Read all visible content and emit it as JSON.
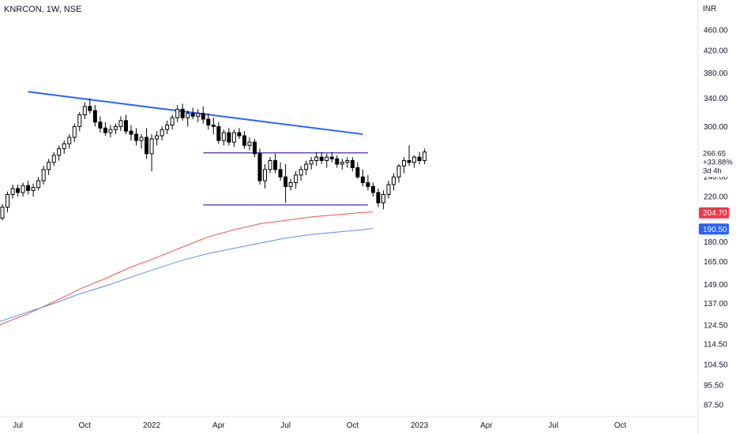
{
  "header": {
    "title": "KNRCON, 1W, NSE",
    "currency": "INR"
  },
  "chart_data": {
    "type": "candlestick",
    "title": "KNRCON, 1W, NSE",
    "y_scale": "log",
    "ylim": [
      83,
      490
    ],
    "y_ticks": [
      "460.00",
      "420.00",
      "380.00",
      "340.00",
      "300.00",
      "240.00",
      "220.00",
      "180.00",
      "165.00",
      "149.00",
      "137.00",
      "124.50",
      "114.50",
      "104.50",
      "95.50",
      "87.50"
    ],
    "x_ticks": [
      "Jul",
      "Oct",
      "2022",
      "Apr",
      "Jul",
      "Oct",
      "2023",
      "Apr",
      "Jul",
      "Oct"
    ],
    "x_tick_weeks": [
      3,
      16,
      29,
      42,
      55,
      68,
      81,
      94,
      107,
      120
    ],
    "candles": [
      [
        200,
        213,
        198,
        210
      ],
      [
        210,
        225,
        205,
        222
      ],
      [
        222,
        232,
        218,
        228
      ],
      [
        228,
        232,
        220,
        224
      ],
      [
        224,
        234,
        220,
        231
      ],
      [
        231,
        236,
        222,
        226
      ],
      [
        226,
        233,
        220,
        229
      ],
      [
        229,
        240,
        226,
        236
      ],
      [
        236,
        252,
        232,
        248
      ],
      [
        248,
        260,
        242,
        256
      ],
      [
        256,
        268,
        252,
        264
      ],
      [
        264,
        276,
        258,
        272
      ],
      [
        272,
        282,
        266,
        278
      ],
      [
        278,
        290,
        272,
        286
      ],
      [
        286,
        304,
        280,
        300
      ],
      [
        300,
        320,
        294,
        316
      ],
      [
        316,
        334,
        310,
        328
      ],
      [
        328,
        340,
        318,
        322
      ],
      [
        322,
        330,
        300,
        306
      ],
      [
        306,
        314,
        292,
        298
      ],
      [
        298,
        306,
        288,
        292
      ],
      [
        292,
        302,
        286,
        296
      ],
      [
        296,
        304,
        290,
        300
      ],
      [
        300,
        314,
        294,
        308
      ],
      [
        308,
        316,
        290,
        294
      ],
      [
        294,
        302,
        282,
        290
      ],
      [
        290,
        298,
        276,
        282
      ],
      [
        282,
        290,
        272,
        286
      ],
      [
        286,
        298,
        260,
        266
      ],
      [
        266,
        290,
        246,
        284
      ],
      [
        284,
        294,
        276,
        288
      ],
      [
        288,
        300,
        282,
        296
      ],
      [
        296,
        308,
        290,
        302
      ],
      [
        302,
        316,
        296,
        312
      ],
      [
        312,
        330,
        306,
        324
      ],
      [
        324,
        332,
        308,
        312
      ],
      [
        312,
        322,
        300,
        318
      ],
      [
        318,
        326,
        310,
        314
      ],
      [
        314,
        324,
        306,
        318
      ],
      [
        318,
        328,
        304,
        310
      ],
      [
        310,
        318,
        296,
        302
      ],
      [
        302,
        312,
        290,
        300
      ],
      [
        300,
        306,
        278,
        282
      ],
      [
        282,
        296,
        276,
        292
      ],
      [
        292,
        298,
        276,
        280
      ],
      [
        280,
        296,
        274,
        292
      ],
      [
        292,
        298,
        284,
        288
      ],
      [
        288,
        294,
        272,
        276
      ],
      [
        276,
        286,
        270,
        280
      ],
      [
        280,
        284,
        262,
        266
      ],
      [
        266,
        272,
        232,
        236
      ],
      [
        236,
        254,
        228,
        248
      ],
      [
        248,
        262,
        244,
        258
      ],
      [
        258,
        266,
        244,
        248
      ],
      [
        248,
        256,
        236,
        240
      ],
      [
        240,
        254,
        214,
        230
      ],
      [
        230,
        238,
        226,
        234
      ],
      [
        234,
        246,
        228,
        242
      ],
      [
        242,
        252,
        236,
        248
      ],
      [
        248,
        258,
        242,
        254
      ],
      [
        254,
        262,
        248,
        258
      ],
      [
        258,
        268,
        252,
        262
      ],
      [
        262,
        268,
        254,
        258
      ],
      [
        258,
        266,
        250,
        262
      ],
      [
        262,
        268,
        256,
        260
      ],
      [
        260,
        264,
        250,
        254
      ],
      [
        254,
        260,
        248,
        256
      ],
      [
        256,
        262,
        250,
        258
      ],
      [
        258,
        262,
        246,
        250
      ],
      [
        250,
        256,
        238,
        240
      ],
      [
        240,
        248,
        230,
        234
      ],
      [
        234,
        242,
        226,
        230
      ],
      [
        230,
        234,
        220,
        224
      ],
      [
        224,
        228,
        210,
        214
      ],
      [
        214,
        226,
        208,
        222
      ],
      [
        222,
        236,
        218,
        232
      ],
      [
        232,
        244,
        226,
        240
      ],
      [
        240,
        254,
        234,
        252
      ],
      [
        252,
        262,
        244,
        258
      ],
      [
        258,
        276,
        252,
        256
      ],
      [
        256,
        264,
        250,
        262
      ],
      [
        262,
        268,
        254,
        258
      ],
      [
        258,
        272,
        254,
        268
      ]
    ],
    "lines": [
      {
        "name": "descending-trendline",
        "color": "#2962ff",
        "points": [
          [
            5,
            350
          ],
          [
            70,
            290
          ]
        ]
      },
      {
        "name": "resistance-line",
        "color": "#5b3bbf",
        "points": [
          [
            39,
            267
          ],
          [
            71,
            267
          ]
        ]
      },
      {
        "name": "support-line",
        "color": "#5b3bbf",
        "points": [
          [
            39,
            212
          ],
          [
            71,
            212
          ]
        ]
      }
    ],
    "moving_averages": [
      {
        "name": "ma-red",
        "color": "#ef5350",
        "points": [
          [
            -2,
            123
          ],
          [
            5,
            131
          ],
          [
            10,
            138
          ],
          [
            15,
            146
          ],
          [
            20,
            153
          ],
          [
            25,
            161
          ],
          [
            30,
            168
          ],
          [
            35,
            176
          ],
          [
            40,
            184
          ],
          [
            45,
            190
          ],
          [
            50,
            195
          ],
          [
            55,
            198
          ],
          [
            60,
            201
          ],
          [
            65,
            203
          ],
          [
            70,
            205
          ],
          [
            72,
            205.5
          ]
        ]
      },
      {
        "name": "ma-blue",
        "color": "#5b8def",
        "points": [
          [
            -2,
            125
          ],
          [
            5,
            132
          ],
          [
            10,
            137
          ],
          [
            15,
            143
          ],
          [
            20,
            148
          ],
          [
            25,
            154
          ],
          [
            30,
            160
          ],
          [
            35,
            166
          ],
          [
            40,
            171
          ],
          [
            45,
            175
          ],
          [
            50,
            179
          ],
          [
            55,
            183
          ],
          [
            60,
            186
          ],
          [
            65,
            188
          ],
          [
            70,
            190
          ],
          [
            72,
            191
          ]
        ]
      }
    ],
    "price_badges": [
      {
        "label": "204.70",
        "value": 204.7,
        "color": "#f23645"
      },
      {
        "label": "190.50",
        "value": 190.5,
        "color": "#2962ff"
      }
    ],
    "last_info": {
      "price": "266.65",
      "change": "+33.88%",
      "countdown": "3d 4h",
      "value": 266.65
    }
  }
}
